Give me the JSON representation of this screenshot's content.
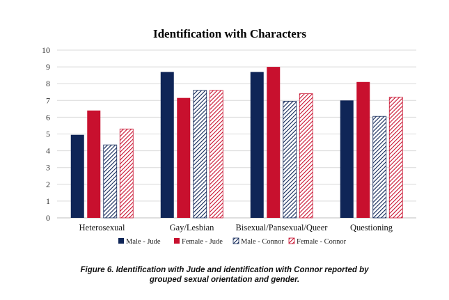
{
  "chart_data": {
    "type": "bar",
    "title": "Identification with Characters",
    "categories": [
      "Heterosexual",
      "Gay/Lesbian",
      "Bisexual/Pansexual/Queer",
      "Questioning"
    ],
    "series": [
      {
        "name": "Male - Jude",
        "values": [
          4.95,
          8.7,
          8.7,
          7.0
        ],
        "color": "#0f2557",
        "pattern": "solid"
      },
      {
        "name": "Female - Jude",
        "values": [
          6.4,
          7.15,
          9.0,
          8.1
        ],
        "color": "#c8102e",
        "pattern": "solid"
      },
      {
        "name": "Male - Connor",
        "values": [
          4.35,
          7.6,
          6.95,
          6.05
        ],
        "color": "#0f2557",
        "pattern": "hatch"
      },
      {
        "name": "Female - Connor",
        "values": [
          5.3,
          7.6,
          7.4,
          7.2
        ],
        "color": "#c8102e",
        "pattern": "hatch"
      }
    ],
    "ylim": [
      0,
      10
    ],
    "yticks": [
      "0",
      "1",
      "2",
      "3",
      "4",
      "5",
      "6",
      "7",
      "8",
      "9",
      "10"
    ],
    "xlabel": "",
    "ylabel": "",
    "grid": true,
    "legend_position": "bottom"
  },
  "caption": {
    "line1": "Figure 6. Identification with Jude and identification with Connor reported by",
    "line2": "grouped sexual orientation and gender."
  },
  "colors": {
    "navy": "#0f2557",
    "red": "#c8102e",
    "grid": "#d9d9d9"
  }
}
